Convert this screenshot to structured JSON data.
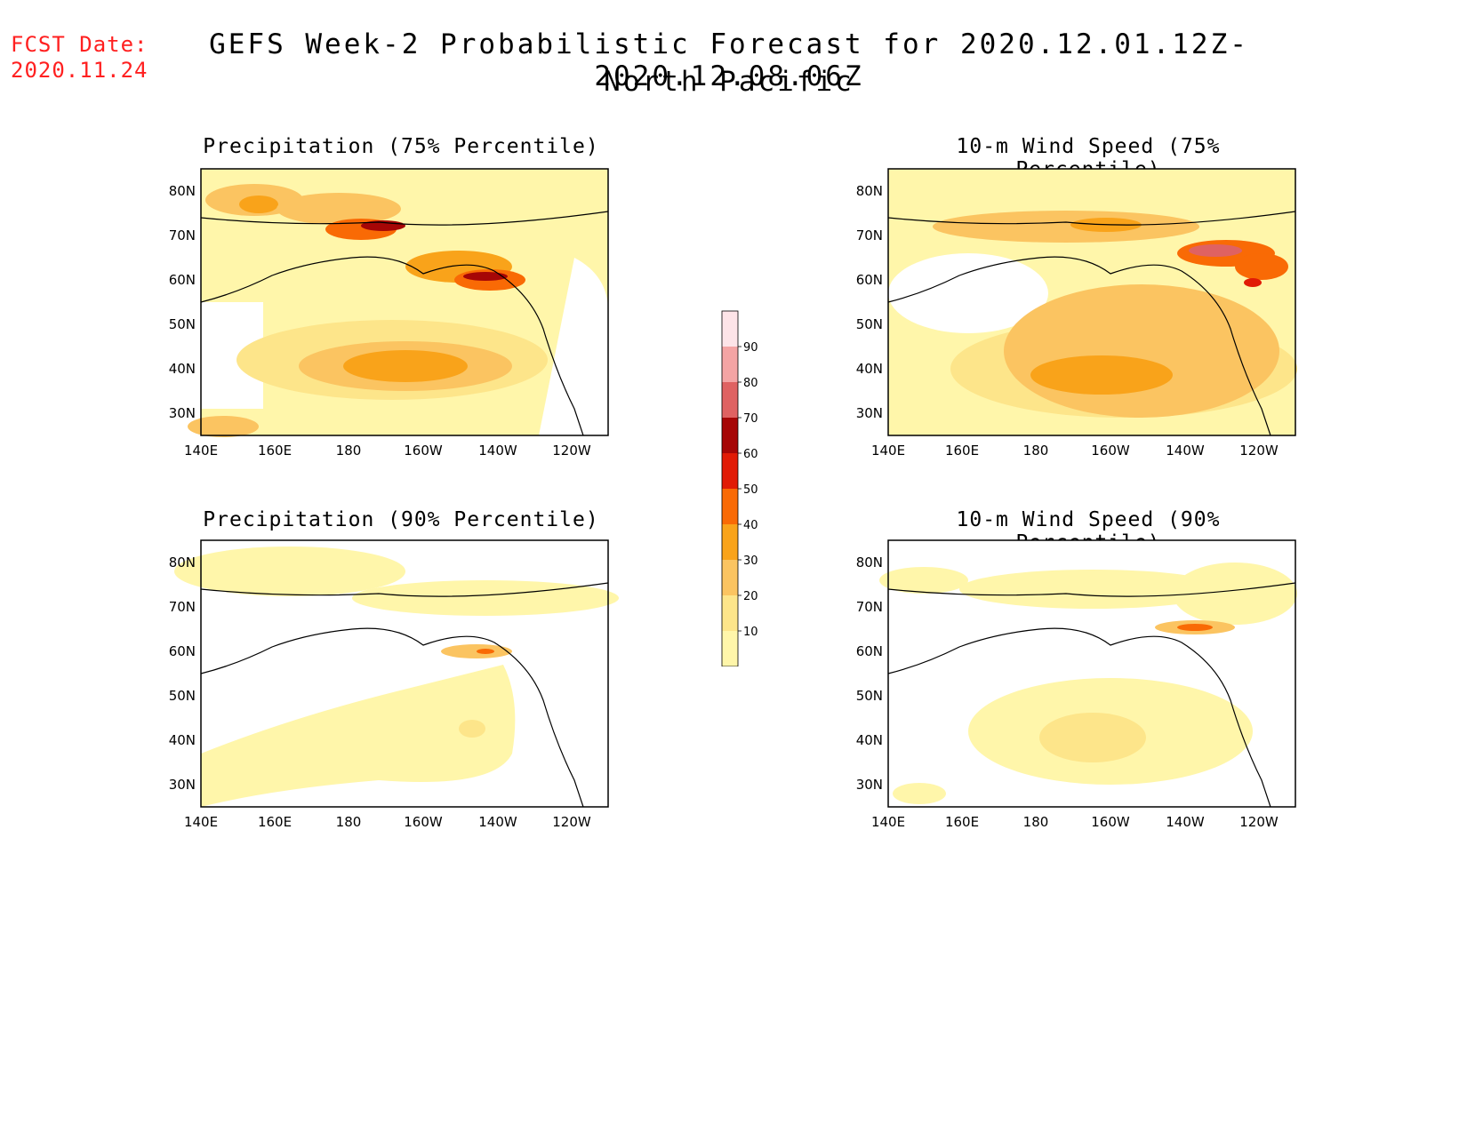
{
  "header": {
    "fcst_label": "FCST Date:",
    "fcst_date": "2020.11.24",
    "title": "GEFS Week-2 Probabilistic Forecast for 2020.12.01.12Z-2020.12.08.06Z",
    "region": "North Pacific"
  },
  "axes": {
    "x_ticks": [
      "140E",
      "160E",
      "180",
      "160W",
      "140W",
      "120W"
    ],
    "y_ticks": [
      "80N",
      "70N",
      "60N",
      "50N",
      "40N",
      "30N"
    ]
  },
  "colorbar": {
    "levels": [
      "10",
      "20",
      "30",
      "40",
      "50",
      "60",
      "70",
      "80",
      "90"
    ],
    "colors": [
      "#fff6aa",
      "#fde58a",
      "#fbc461",
      "#f9a31a",
      "#f96a05",
      "#e11b06",
      "#a60606",
      "#df6262",
      "#f4a4a4",
      "#fde4e8"
    ]
  },
  "panels": [
    {
      "id": "precip75",
      "title": "Precipitation (75% Percentile)"
    },
    {
      "id": "wind75",
      "title": "10-m Wind Speed (75% Percentile)"
    },
    {
      "id": "precip90",
      "title": "Precipitation (90% Percentile)"
    },
    {
      "id": "wind90",
      "title": "10-m Wind Speed (90% Percentile)"
    }
  ]
}
